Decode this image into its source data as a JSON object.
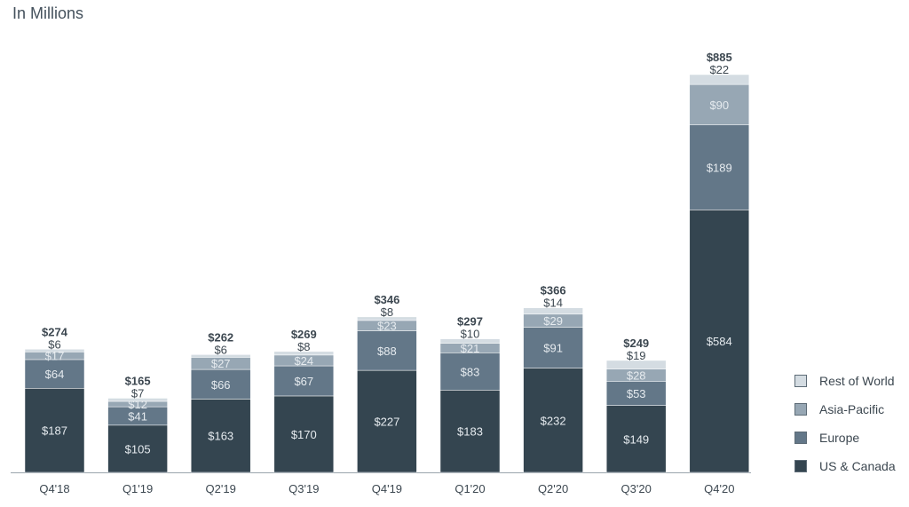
{
  "chart_data": {
    "type": "bar",
    "stacked": true,
    "subtitle": "In Millions",
    "categories": [
      "Q4'18",
      "Q1'19",
      "Q2'19",
      "Q3'19",
      "Q4'19",
      "Q1'20",
      "Q2'20",
      "Q3'20",
      "Q4'20"
    ],
    "totals": [
      274,
      165,
      262,
      269,
      346,
      297,
      366,
      249,
      885
    ],
    "series": [
      {
        "name": "US & Canada",
        "color": "#344550",
        "values": [
          187,
          105,
          163,
          170,
          227,
          183,
          232,
          149,
          584
        ]
      },
      {
        "name": "Europe",
        "color": "#637788",
        "values": [
          64,
          41,
          66,
          67,
          88,
          83,
          91,
          53,
          189
        ]
      },
      {
        "name": "Asia-Pacific",
        "color": "#97a7b4",
        "values": [
          17,
          12,
          27,
          24,
          23,
          21,
          29,
          28,
          90
        ]
      },
      {
        "name": "Rest of World",
        "color": "#d4dce2",
        "values": [
          6,
          7,
          6,
          8,
          8,
          10,
          14,
          19,
          22
        ]
      }
    ],
    "value_prefix": "$",
    "ylim": [
      0,
      885
    ],
    "grid": false,
    "legend_position": "right"
  }
}
